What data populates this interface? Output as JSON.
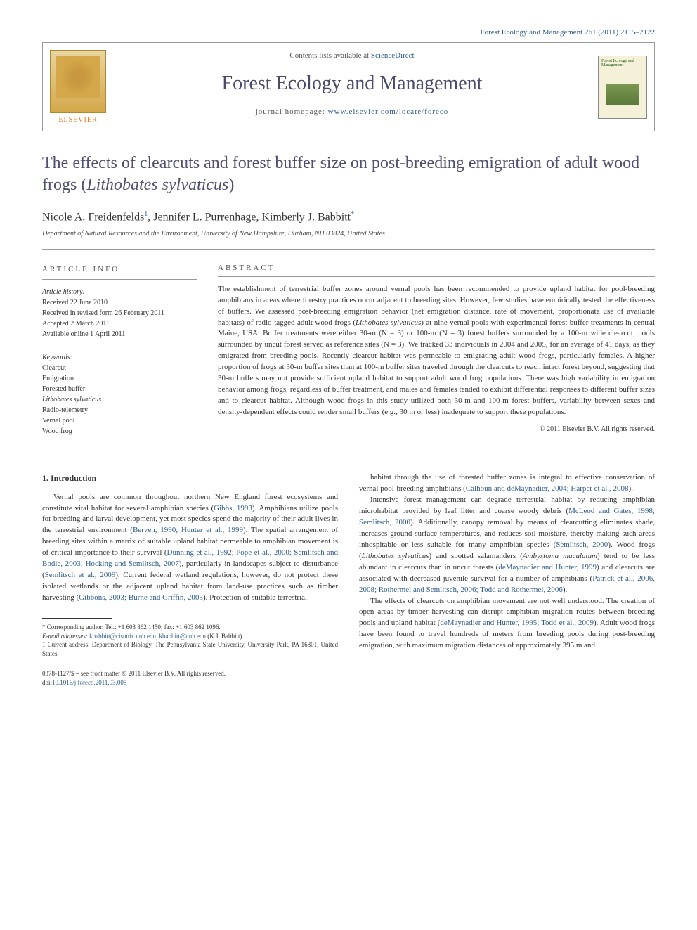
{
  "header": {
    "citation": "Forest Ecology and Management 261 (2011) 2115–2122",
    "contents_prefix": "Contents lists available at ",
    "contents_link": "ScienceDirect",
    "journal_name": "Forest Ecology and Management",
    "homepage_prefix": "journal homepage: ",
    "homepage_url": "www.elsevier.com/locate/foreco",
    "elsevier_label": "ELSEVIER",
    "cover_label": "Forest Ecology and Management"
  },
  "title": {
    "main": "The effects of clearcuts and forest buffer size on post-breeding emigration of adult wood frogs (",
    "species": "Lithobates sylvaticus",
    "close": ")"
  },
  "authors": {
    "a1_name": "Nicole A. Freidenfelds",
    "a1_sup": "1",
    "a2_name": ", Jennifer L. Purrenhage, Kimberly J. Babbitt",
    "a2_sup": "*"
  },
  "affiliation": "Department of Natural Resources and the Environment, University of New Hampshire, Durham, NH 03824, United States",
  "article_info": {
    "heading": "ARTICLE INFO",
    "history_label": "Article history:",
    "received": "Received 22 June 2010",
    "revised": "Received in revised form 26 February 2011",
    "accepted": "Accepted 2 March 2011",
    "online": "Available online 1 April 2011",
    "keywords_label": "Keywords:",
    "keywords": [
      "Clearcut",
      "Emigration",
      "Forested buffer",
      "Lithobates sylvaticus",
      "Radio-telemetry",
      "Vernal pool",
      "Wood frog"
    ]
  },
  "abstract": {
    "heading": "ABSTRACT",
    "body_parts": [
      "The establishment of terrestrial buffer zones around vernal pools has been recommended to provide upland habitat for pool-breeding amphibians in areas where forestry practices occur adjacent to breeding sites. However, few studies have empirically tested the effectiveness of buffers. We assessed post-breeding emigration behavior (net emigration distance, rate of movement, proportionate use of available habitats) of radio-tagged adult wood frogs (",
      "Lithobates sylvaticus",
      ") at nine vernal pools with experimental forest buffer treatments in central Maine, USA. Buffer treatments were either 30-m (N = 3) or 100-m (N = 3) forest buffers surrounded by a 100-m wide clearcut; pools surrounded by uncut forest served as reference sites (N = 3). We tracked 33 individuals in 2004 and 2005, for an average of 41 days, as they emigrated from breeding pools. Recently clearcut habitat was permeable to emigrating adult wood frogs, particularly females. A higher proportion of frogs at 30-m buffer sites than at 100-m buffer sites traveled through the clearcuts to reach intact forest beyond, suggesting that 30-m buffers may not provide sufficient upland habitat to support adult wood frog populations. There was high variability in emigration behavior among frogs, regardless of buffer treatment, and males and females tended to exhibit differential responses to different buffer sizes and to clearcut habitat. Although wood frogs in this study utilized both 30-m and 100-m forest buffers, variability between sexes and density-dependent effects could render small buffers (e.g., 30 m or less) inadequate to support these populations."
    ],
    "copyright": "© 2011 Elsevier B.V. All rights reserved."
  },
  "introduction": {
    "heading": "1. Introduction",
    "left_paragraphs": [
      {
        "parts": [
          {
            "t": "text",
            "v": "Vernal pools are common throughout northern New England forest ecosystems and constitute vital habitat for several amphibian species ("
          },
          {
            "t": "ref",
            "v": "Gibbs, 1993"
          },
          {
            "t": "text",
            "v": "). Amphibians utilize pools for breeding and larval development, yet most species spend the majority of their adult lives in the terrestrial environment ("
          },
          {
            "t": "ref",
            "v": "Berven, 1990; Hunter et al., 1999"
          },
          {
            "t": "text",
            "v": "). The spatial arrangement of breeding sites within a matrix of suitable upland habitat permeable to amphibian movement is of critical importance to their survival ("
          },
          {
            "t": "ref",
            "v": "Dunning et al., 1992; Pope et al., 2000; Semlitsch and Bodie, 2003; Hocking and Semlitsch, 2007"
          },
          {
            "t": "text",
            "v": "), particularly in landscapes subject to disturbance ("
          },
          {
            "t": "ref",
            "v": "Semlitsch et al., 2009"
          },
          {
            "t": "text",
            "v": "). Current federal wetland regulations, however, do not protect these isolated wetlands or the adjacent upland habitat from land-use practices such as timber harvesting ("
          },
          {
            "t": "ref",
            "v": "Gibbons, 2003; Burne and Griffin, 2005"
          },
          {
            "t": "text",
            "v": "). Protection of suitable terrestrial"
          }
        ]
      }
    ],
    "right_paragraphs": [
      {
        "parts": [
          {
            "t": "text",
            "v": "habitat through the use of forested buffer zones is integral to effective conservation of vernal pool-breeding amphibians ("
          },
          {
            "t": "ref",
            "v": "Calhoun and deMaynadier, 2004; Harper et al., 2008"
          },
          {
            "t": "text",
            "v": ")."
          }
        ]
      },
      {
        "parts": [
          {
            "t": "text",
            "v": "Intensive forest management can degrade terrestrial habitat by reducing amphibian microhabitat provided by leaf litter and coarse woody debris ("
          },
          {
            "t": "ref",
            "v": "McLeod and Gates, 1998; Semlitsch, 2000"
          },
          {
            "t": "text",
            "v": "). Additionally, canopy removal by means of clearcutting eliminates shade, increases ground surface temperatures, and reduces soil moisture, thereby making such areas inhospitable or less suitable for many amphibian species ("
          },
          {
            "t": "ref",
            "v": "Semlitsch, 2000"
          },
          {
            "t": "text",
            "v": "). Wood frogs ("
          },
          {
            "t": "species",
            "v": "Lithobates sylvaticus"
          },
          {
            "t": "text",
            "v": ") and spotted salamanders ("
          },
          {
            "t": "species",
            "v": "Ambystoma maculatum"
          },
          {
            "t": "text",
            "v": ") tend to be less abundant in clearcuts than in uncut forests ("
          },
          {
            "t": "ref",
            "v": "deMaynadier and Hunter, 1999"
          },
          {
            "t": "text",
            "v": ") and clearcuts are associated with decreased juvenile survival for a number of amphibians ("
          },
          {
            "t": "ref",
            "v": "Patrick et al., 2006, 2008; Rothermel and Semlitsch, 2006; Todd and Rothermel, 2006"
          },
          {
            "t": "text",
            "v": ")."
          }
        ]
      },
      {
        "parts": [
          {
            "t": "text",
            "v": "The effects of clearcuts on amphibian movement are not well understood. The creation of open areas by timber harvesting can disrupt amphibian migration routes between breeding pools and upland habitat ("
          },
          {
            "t": "ref",
            "v": "deMaynadier and Hunter, 1995; Todd et al., 2009"
          },
          {
            "t": "text",
            "v": "). Adult wood frogs have been found to travel hundreds of meters from breeding pools during post-breeding emigration, with maximum migration distances of approximately 395 m and"
          }
        ]
      }
    ]
  },
  "footnotes": {
    "corresponding_label": "* Corresponding author. Tel.: +1 603 862 1450; fax: +1 603 862 1096.",
    "email_label": "E-mail addresses: ",
    "email1": "kbabbitt@cisunix.unh.edu",
    "email_sep": ", ",
    "email2": "kbabbitt@unh.edu",
    "email_owner": " (K.J. Babbitt).",
    "current_address": "1 Current address: Department of Biology, The Pennsylvania State University, University Park, PA 16801, United States."
  },
  "footer": {
    "issn_line": "0378-1127/$ – see front matter © 2011 Elsevier B.V. All rights reserved.",
    "doi_prefix": "doi:",
    "doi": "10.1016/j.foreco.2011.03.005"
  },
  "colors": {
    "link": "#2e5c8a",
    "title": "#505070",
    "text": "#333333"
  }
}
